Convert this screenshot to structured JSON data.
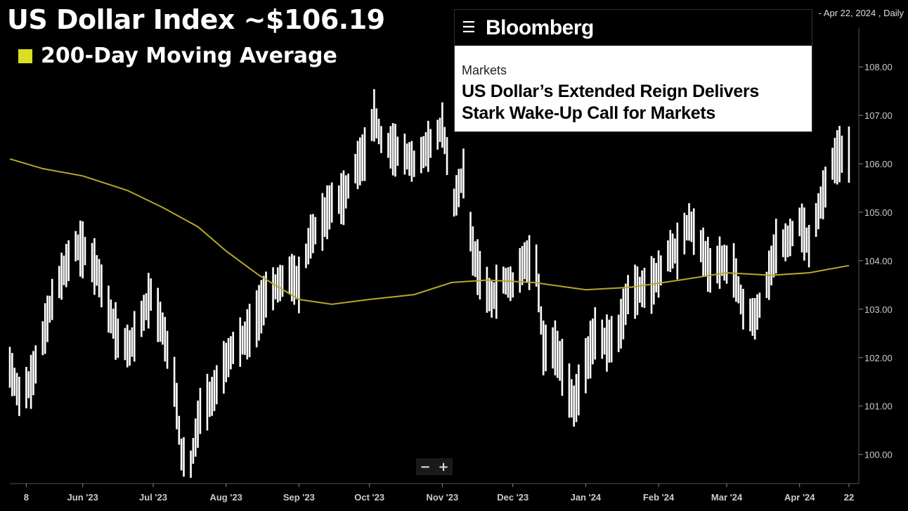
{
  "title": "US Dollar Index ~$106.19",
  "legend_label": "200-Day Moving Average",
  "date_range": "- Apr 22, 2024 , Daily",
  "news": {
    "brand": "Bloomberg",
    "section": "Markets",
    "headline_line1": "US Dollar’s Extended Reign Delivers",
    "headline_line2": "Stark Wake-Up Call for Markets"
  },
  "zoom": {
    "minus": "−",
    "plus": "+"
  },
  "colors": {
    "bars": "#ffffff",
    "ma": "#b5a82a",
    "legend_swatch": "#d9e021",
    "axis": "#cccccc"
  },
  "chart_data": {
    "type": "line",
    "ylim": [
      99.4,
      108.8
    ],
    "yticks": [
      "100.00",
      "101.00",
      "102.00",
      "103.00",
      "104.00",
      "105.00",
      "106.00",
      "107.00",
      "108.00"
    ],
    "xticks": [
      {
        "label": "8",
        "date": "2023-05-08"
      },
      {
        "label": "Jun '23",
        "date": "2023-06-01"
      },
      {
        "label": "Jul '23",
        "date": "2023-07-01"
      },
      {
        "label": "Aug '23",
        "date": "2023-08-01"
      },
      {
        "label": "Sep '23",
        "date": "2023-09-01"
      },
      {
        "label": "Oct '23",
        "date": "2023-10-01"
      },
      {
        "label": "Nov '23",
        "date": "2023-11-01"
      },
      {
        "label": "Dec '23",
        "date": "2023-12-01"
      },
      {
        "label": "Jan '24",
        "date": "2024-01-01"
      },
      {
        "label": "Feb '24",
        "date": "2024-02-01"
      },
      {
        "label": "Mar '24",
        "date": "2024-03-01"
      },
      {
        "label": "Apr '24",
        "date": "2024-04-01"
      },
      {
        "label": "22",
        "date": "2024-04-22"
      }
    ],
    "series": [
      {
        "style": "ohlc-bars",
        "points": [
          [
            "2023-05-01",
            101.8
          ],
          [
            "2023-05-05",
            101.2
          ],
          [
            "2023-05-10",
            101.5
          ],
          [
            "2023-05-15",
            102.4
          ],
          [
            "2023-05-19",
            103.2
          ],
          [
            "2023-05-24",
            103.8
          ],
          [
            "2023-05-29",
            104.3
          ],
          [
            "2023-06-02",
            104.2
          ],
          [
            "2023-06-07",
            103.8
          ],
          [
            "2023-06-12",
            103.0
          ],
          [
            "2023-06-16",
            102.4
          ],
          [
            "2023-06-21",
            102.2
          ],
          [
            "2023-06-26",
            102.8
          ],
          [
            "2023-06-30",
            103.3
          ],
          [
            "2023-07-05",
            102.6
          ],
          [
            "2023-07-10",
            101.5
          ],
          [
            "2023-07-13",
            100.0
          ],
          [
            "2023-07-17",
            99.8
          ],
          [
            "2023-07-21",
            100.9
          ],
          [
            "2023-07-26",
            101.2
          ],
          [
            "2023-07-31",
            101.8
          ],
          [
            "2023-08-04",
            102.2
          ],
          [
            "2023-08-09",
            102.4
          ],
          [
            "2023-08-14",
            102.8
          ],
          [
            "2023-08-18",
            103.3
          ],
          [
            "2023-08-23",
            103.5
          ],
          [
            "2023-08-28",
            103.7
          ],
          [
            "2023-09-01",
            103.5
          ],
          [
            "2023-09-06",
            104.5
          ],
          [
            "2023-09-11",
            104.8
          ],
          [
            "2023-09-15",
            105.2
          ],
          [
            "2023-09-20",
            105.3
          ],
          [
            "2023-09-25",
            105.9
          ],
          [
            "2023-09-29",
            106.2
          ],
          [
            "2023-10-03",
            107.0
          ],
          [
            "2023-10-06",
            106.5
          ],
          [
            "2023-10-11",
            106.3
          ],
          [
            "2023-10-16",
            106.2
          ],
          [
            "2023-10-20",
            106.0
          ],
          [
            "2023-10-25",
            106.3
          ],
          [
            "2023-10-30",
            106.6
          ],
          [
            "2023-11-01",
            106.8
          ],
          [
            "2023-11-06",
            105.2
          ],
          [
            "2023-11-10",
            105.8
          ],
          [
            "2023-11-14",
            104.2
          ],
          [
            "2023-11-17",
            103.7
          ],
          [
            "2023-11-22",
            103.2
          ],
          [
            "2023-11-27",
            103.6
          ],
          [
            "2023-12-01",
            103.5
          ],
          [
            "2023-12-06",
            104.0
          ],
          [
            "2023-12-11",
            103.9
          ],
          [
            "2023-12-14",
            102.2
          ],
          [
            "2023-12-19",
            102.2
          ],
          [
            "2023-12-22",
            101.8
          ],
          [
            "2023-12-27",
            101.0
          ],
          [
            "2024-01-02",
            102.0
          ],
          [
            "2024-01-05",
            102.5
          ],
          [
            "2024-01-10",
            102.3
          ],
          [
            "2024-01-15",
            102.5
          ],
          [
            "2024-01-19",
            103.3
          ],
          [
            "2024-01-24",
            103.4
          ],
          [
            "2024-01-29",
            103.5
          ],
          [
            "2024-02-02",
            103.8
          ],
          [
            "2024-02-06",
            104.2
          ],
          [
            "2024-02-09",
            104.2
          ],
          [
            "2024-02-14",
            104.8
          ],
          [
            "2024-02-19",
            104.3
          ],
          [
            "2024-02-23",
            103.8
          ],
          [
            "2024-02-28",
            104.0
          ],
          [
            "2024-03-04",
            103.8
          ],
          [
            "2024-03-08",
            103.0
          ],
          [
            "2024-03-13",
            102.8
          ],
          [
            "2024-03-18",
            103.5
          ],
          [
            "2024-03-22",
            104.3
          ],
          [
            "2024-03-27",
            104.4
          ],
          [
            "2024-04-01",
            104.8
          ],
          [
            "2024-04-05",
            104.3
          ],
          [
            "2024-04-10",
            105.2
          ],
          [
            "2024-04-15",
            106.0
          ],
          [
            "2024-04-18",
            106.2
          ],
          [
            "2024-04-22",
            106.19
          ]
        ]
      },
      {
        "name": "200-Day Moving Average",
        "style": "line",
        "points": [
          [
            "2023-05-01",
            106.1
          ],
          [
            "2023-05-15",
            105.9
          ],
          [
            "2023-06-01",
            105.75
          ],
          [
            "2023-06-20",
            105.45
          ],
          [
            "2023-07-05",
            105.1
          ],
          [
            "2023-07-20",
            104.7
          ],
          [
            "2023-08-01",
            104.2
          ],
          [
            "2023-08-15",
            103.7
          ],
          [
            "2023-09-01",
            103.2
          ],
          [
            "2023-09-15",
            103.1
          ],
          [
            "2023-10-01",
            103.2
          ],
          [
            "2023-10-20",
            103.3
          ],
          [
            "2023-11-05",
            103.55
          ],
          [
            "2023-11-20",
            103.6
          ],
          [
            "2023-12-10",
            103.55
          ],
          [
            "2024-01-01",
            103.4
          ],
          [
            "2024-01-20",
            103.45
          ],
          [
            "2024-02-10",
            103.6
          ],
          [
            "2024-03-01",
            103.75
          ],
          [
            "2024-03-20",
            103.7
          ],
          [
            "2024-04-05",
            103.75
          ],
          [
            "2024-04-22",
            103.9
          ]
        ]
      }
    ]
  }
}
